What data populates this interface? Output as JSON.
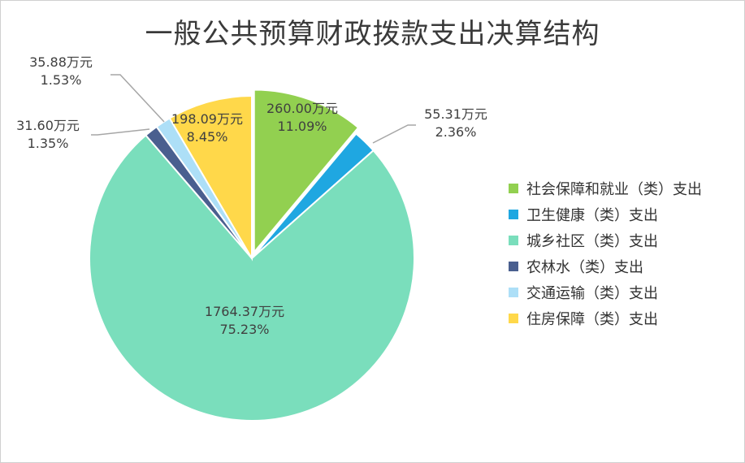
{
  "chart_data": {
    "type": "pie",
    "title": "一般公共预算财政拨款支出决算结构",
    "slices": [
      {
        "name": "社会保障和就业（类）支出",
        "value": 260.0,
        "value_label": "260.00万元",
        "percent_label": "11.09%",
        "color": "#92D050",
        "exploded": true
      },
      {
        "name": "卫生健康（类）支出",
        "value": 55.31,
        "value_label": "55.31万元",
        "percent_label": "2.36%",
        "color": "#1FA7E1",
        "exploded": false
      },
      {
        "name": "城乡社区（类）支出",
        "value": 1764.37,
        "value_label": "1764.37万元",
        "percent_label": "75.23%",
        "color": "#7ADEBC",
        "exploded": false
      },
      {
        "name": "农林水（类）支出",
        "value": 31.6,
        "value_label": "31.60万元",
        "percent_label": "1.35%",
        "color": "#4A5F8F",
        "exploded": false
      },
      {
        "name": "交通运输（类）支出",
        "value": 35.88,
        "value_label": "35.88万元",
        "percent_label": "1.53%",
        "color": "#ADDFF7",
        "exploded": false
      },
      {
        "name": "住房保障（类）支出",
        "value": 198.09,
        "value_label": "198.09万元",
        "percent_label": "8.45%",
        "color": "#FFD84A",
        "exploded": false
      }
    ],
    "legend_position": "right"
  }
}
